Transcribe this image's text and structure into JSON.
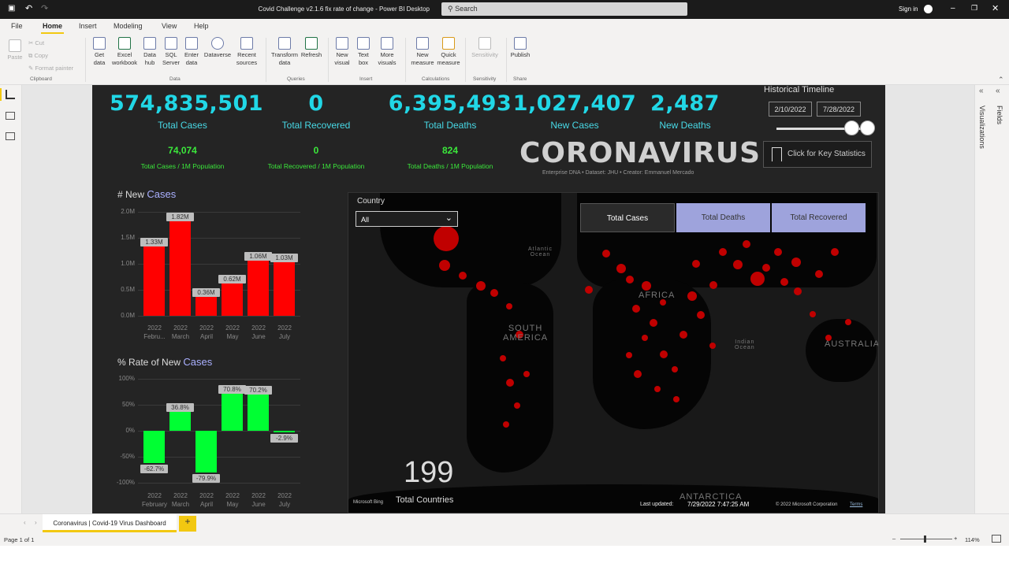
{
  "window": {
    "title": "Covid Challenge v2.1.6 fix rate of change - Power BI Desktop",
    "search_placeholder": "Search",
    "sign_in": "Sign in"
  },
  "menu": [
    "File",
    "Home",
    "Insert",
    "Modeling",
    "View",
    "Help"
  ],
  "ribbon": {
    "clipboard": {
      "paste": "Paste",
      "cut": "Cut",
      "copy": "Copy",
      "format_painter": "Format painter",
      "group": "Clipboard"
    },
    "data": {
      "get_data": "Get data",
      "excel": "Excel workbook",
      "data_hub": "Data hub",
      "sql": "SQL Server",
      "enter": "Enter data",
      "dataverse": "Dataverse",
      "recent": "Recent sources",
      "group": "Data"
    },
    "queries": {
      "transform": "Transform data",
      "refresh": "Refresh",
      "group": "Queries"
    },
    "insert": {
      "new_visual": "New visual",
      "text_box": "Text box",
      "more_visuals": "More visuals",
      "group": "Insert"
    },
    "calculations": {
      "new_measure": "New measure",
      "quick_measure": "Quick measure",
      "group": "Calculations"
    },
    "sensitivity": {
      "label": "Sensitivity",
      "group": "Sensitivity"
    },
    "share": {
      "publish": "Publish",
      "group": "Share"
    }
  },
  "panes": {
    "visualizations": "Visualizations",
    "fields": "Fields"
  },
  "kpis": [
    {
      "value": "574,835,501",
      "label": "Total Cases"
    },
    {
      "value": "0",
      "label": "Total Recovered"
    },
    {
      "value": "6,395,493",
      "label": "Total Deaths"
    },
    {
      "value": "1,027,407",
      "label": "New Cases"
    },
    {
      "value": "2,487",
      "label": "New Deaths"
    }
  ],
  "per_million": [
    {
      "value": "74,074",
      "label": "Total Cases / 1M Population"
    },
    {
      "value": "0",
      "label": "Total Recovered / 1M Population"
    },
    {
      "value": "824",
      "label": "Total Deaths / 1M Population"
    }
  ],
  "timeline": {
    "title": "Historical Timeline",
    "start": "2/10/2022",
    "end": "7/28/2022"
  },
  "logo": {
    "text": "CORONAVIRUS",
    "credit": "Enterprise DNA  •  Dataset: JHU  •  Creator: Emmanuel Mercado"
  },
  "key_stats_button": "Click for Key Statistics",
  "country_filter": {
    "label": "Country",
    "value": "All"
  },
  "map_tabs": [
    "Total Cases",
    "Total Deaths",
    "Total Recovered"
  ],
  "map_labels": {
    "africa": "AFRICA",
    "south_america": "SOUTH\nAMERICA",
    "australia": "AUSTRALIA",
    "antarctica": "ANTARCTICA",
    "atlantic": "Atlantic\nOcean",
    "indian": "Indian\nOcean"
  },
  "total_countries": {
    "value": "199",
    "label": "Total Countries"
  },
  "map_footer": {
    "bing": "Microsoft Bing",
    "updated_label": "Last updated:",
    "updated": "7/29/2022 7:47:25 AM",
    "copyright": "© 2022 Microsoft Corporation",
    "terms": "Terms"
  },
  "chart_new": {
    "title_prefix": "# New",
    "title_word": "Cases"
  },
  "chart_rate": {
    "title_prefix": "% Rate of New",
    "title_word": "Cases"
  },
  "page_tab": "Coronavirus | Covid-19 Virus Dashboard",
  "status": {
    "page": "Page 1 of 1",
    "zoom": "114%"
  },
  "chart_data": [
    {
      "type": "bar",
      "title": "# New Cases",
      "categories": [
        "2022 Febru...",
        "2022 March",
        "2022 April",
        "2022 May",
        "2022 June",
        "2022 July"
      ],
      "values": [
        1.33,
        1.82,
        0.36,
        0.62,
        1.06,
        1.03
      ],
      "value_unit": "M",
      "data_labels": [
        "1.33M",
        "1.82M",
        "0.36M",
        "0.62M",
        "1.06M",
        "1.03M"
      ],
      "y_ticks": [
        "0.0M",
        "0.5M",
        "1.0M",
        "1.5M",
        "2.0M"
      ],
      "ylim": [
        0,
        2.0
      ],
      "color": "#ff0000",
      "grid": true
    },
    {
      "type": "bar",
      "title": "% Rate of New Cases",
      "categories": [
        "2022 February",
        "2022 March",
        "2022 April",
        "2022 May",
        "2022 June",
        "2022 July"
      ],
      "values": [
        -62.7,
        36.8,
        -79.9,
        70.8,
        70.2,
        -2.9
      ],
      "value_unit": "%",
      "data_labels": [
        "-62.7%",
        "36.8%",
        "-79.9%",
        "70.8%",
        "70.2%",
        "-2.9%"
      ],
      "y_ticks": [
        "-100%",
        "-50%",
        "0%",
        "50%",
        "100%"
      ],
      "ylim": [
        -100,
        100
      ],
      "color": "#00ff33",
      "grid": true
    }
  ]
}
